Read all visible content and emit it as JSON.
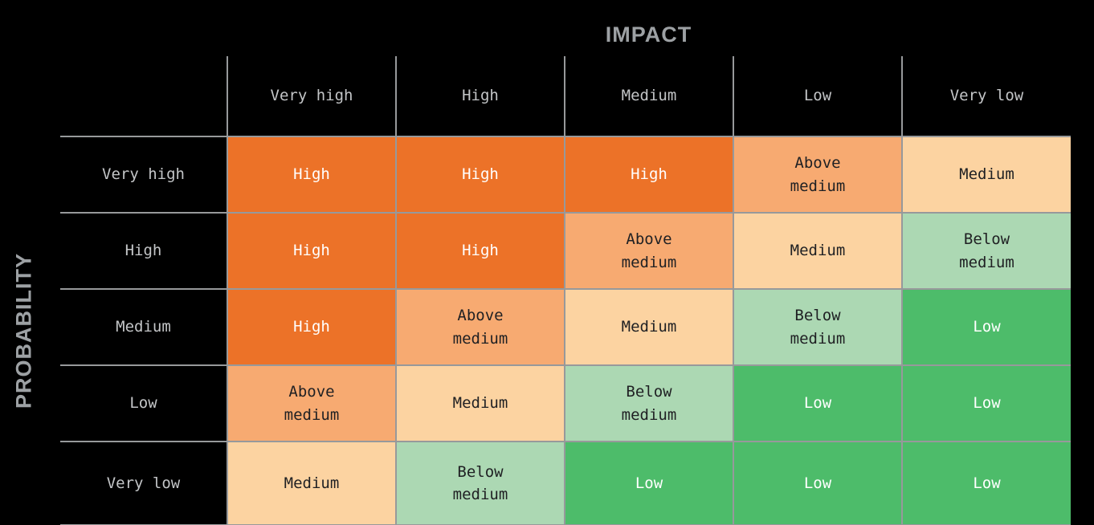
{
  "axes": {
    "impact_label": "IMPACT",
    "probability_label": "PROBABILITY"
  },
  "columns": [
    "Very high",
    "High",
    "Medium",
    "Low",
    "Very low"
  ],
  "rows": [
    "Very high",
    "High",
    "Medium",
    "Low",
    "Very low"
  ],
  "levels": {
    "high": {
      "label": "High",
      "bg": "#EC7228",
      "text": "#FFFFFF"
    },
    "above_medium": {
      "label": "Above medium",
      "bg": "#F7AA71",
      "text": "#1F2023"
    },
    "medium": {
      "label": "Medium",
      "bg": "#FCD3A1",
      "text": "#1F2023"
    },
    "below_medium": {
      "label": "Below medium",
      "bg": "#ACD8B3",
      "text": "#1F2023"
    },
    "low": {
      "label": "Low",
      "bg": "#4DBC6A",
      "text": "#FFFFFF"
    }
  },
  "matrix": [
    [
      "high",
      "high",
      "high",
      "above_medium",
      "medium"
    ],
    [
      "high",
      "high",
      "above_medium",
      "medium",
      "below_medium"
    ],
    [
      "high",
      "above_medium",
      "medium",
      "below_medium",
      "low"
    ],
    [
      "above_medium",
      "medium",
      "below_medium",
      "low",
      "low"
    ],
    [
      "medium",
      "below_medium",
      "low",
      "low",
      "low"
    ]
  ],
  "style": {
    "background": "#000000",
    "grid_line": "#97999B",
    "header_text": "#C3C5C7",
    "axis_title_text": "#9DA1A4"
  },
  "chart_data": {
    "type": "heatmap",
    "title": "",
    "xlabel": "IMPACT",
    "ylabel": "PROBABILITY",
    "x_categories": [
      "Very high",
      "High",
      "Medium",
      "Low",
      "Very low"
    ],
    "y_categories": [
      "Very high",
      "High",
      "Medium",
      "Low",
      "Very low"
    ],
    "values": [
      [
        "High",
        "High",
        "High",
        "Above medium",
        "Medium"
      ],
      [
        "High",
        "High",
        "Above medium",
        "Medium",
        "Below medium"
      ],
      [
        "High",
        "Above medium",
        "Medium",
        "Below medium",
        "Low"
      ],
      [
        "Above medium",
        "Medium",
        "Below medium",
        "Low",
        "Low"
      ],
      [
        "Medium",
        "Below medium",
        "Low",
        "Low",
        "Low"
      ]
    ],
    "legend_position": "none",
    "grid": true,
    "color_map": {
      "High": "#EC7228",
      "Above medium": "#F7AA71",
      "Medium": "#FCD3A1",
      "Below medium": "#ACD8B3",
      "Low": "#4DBC6A"
    }
  }
}
